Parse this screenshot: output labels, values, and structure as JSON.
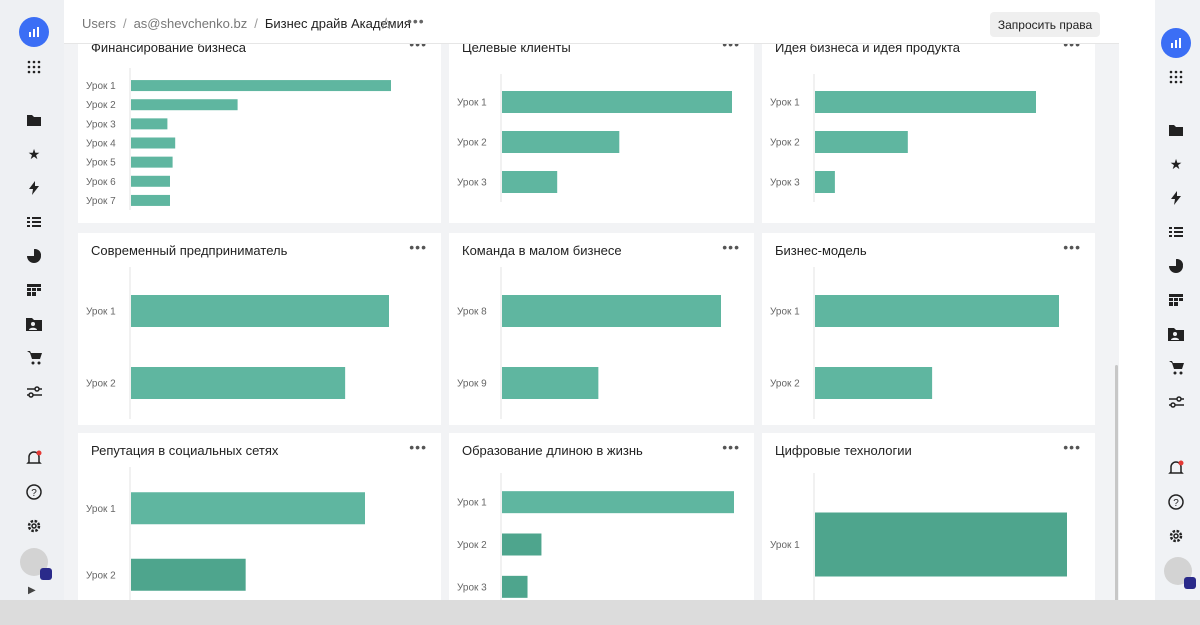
{
  "breadcrumb": {
    "root": "Users",
    "user": "as@shevchenko.bz",
    "current": "Бизнес драйв Академия"
  },
  "actions": {
    "request_rights": "Запросить права"
  },
  "bar_color": "#5fb6a0",
  "bar_color_dark": "#4ea58d",
  "sidebar_icons": [
    "dashboards-logo-icon",
    "apps-grid-icon",
    "folder-icon",
    "star-icon",
    "lightning-icon",
    "list-icon",
    "pie-chart-icon",
    "table-icon",
    "folder-user-icon",
    "cart-icon",
    "settings-sliders-icon",
    "notification-bell-icon",
    "help-icon",
    "gear-icon",
    "avatar"
  ],
  "cards": [
    {
      "title": "Финансирование бизнеса",
      "chart_data": {
        "type": "bar",
        "orientation": "horizontal",
        "categories": [
          "Урок 1",
          "Урок 2",
          "Урок 3",
          "Урок 4",
          "Урок 5",
          "Урок 6",
          "Урок 7"
        ],
        "values": [
          100,
          41,
          14,
          17,
          16,
          15,
          15
        ]
      }
    },
    {
      "title": "Целевые клиенты",
      "chart_data": {
        "type": "bar",
        "orientation": "horizontal",
        "categories": [
          "Урок 1",
          "Урок 2",
          "Урок 3"
        ],
        "values": [
          100,
          51,
          24
        ]
      }
    },
    {
      "title": "Идея бизнеса и идея продукта",
      "chart_data": {
        "type": "bar",
        "orientation": "horizontal",
        "categories": [
          "Урок 1",
          "Урок 2",
          "Урок 3"
        ],
        "values": [
          100,
          42,
          9
        ]
      }
    },
    {
      "title": "Современный предприниматель",
      "chart_data": {
        "type": "bar",
        "orientation": "horizontal",
        "categories": [
          "Урок 1",
          "Урок 2"
        ],
        "values": [
          100,
          83
        ]
      }
    },
    {
      "title": "Команда в малом бизнесе",
      "chart_data": {
        "type": "bar",
        "orientation": "horizontal",
        "categories": [
          "Урок 8",
          "Урок 9"
        ],
        "values": [
          100,
          44
        ]
      }
    },
    {
      "title": "Бизнес-модель",
      "chart_data": {
        "type": "bar",
        "orientation": "horizontal",
        "categories": [
          "Урок 1",
          "Урок 2"
        ],
        "values": [
          100,
          48
        ]
      }
    },
    {
      "title": "Репутация в социальных сетях",
      "chart_data": {
        "type": "bar",
        "orientation": "horizontal",
        "categories": [
          "Урок 1",
          "Урок 2"
        ],
        "values": [
          100,
          49
        ]
      }
    },
    {
      "title": "Образование длиною в жизнь",
      "chart_data": {
        "type": "bar",
        "orientation": "horizontal",
        "categories": [
          "Урок 1",
          "Урок 2",
          "Урок 3"
        ],
        "values": [
          100,
          17,
          11
        ]
      }
    },
    {
      "title": "Цифровые технологии",
      "chart_data": {
        "type": "bar",
        "orientation": "horizontal",
        "categories": [
          "Урок 1"
        ],
        "values": [
          100
        ]
      }
    }
  ]
}
